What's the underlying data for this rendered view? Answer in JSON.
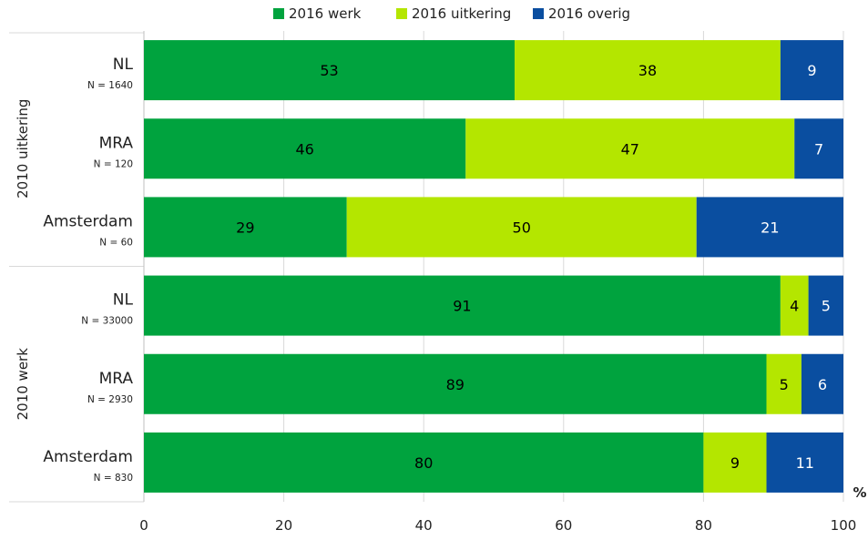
{
  "chart_data": {
    "type": "bar",
    "orientation": "horizontal",
    "stacked": true,
    "legend": {
      "position": "top"
    },
    "series": [
      {
        "name": "2016 werk",
        "color": "#00A33E",
        "values": [
          53,
          46,
          29,
          91,
          89,
          80
        ]
      },
      {
        "name": "2016 uitkering",
        "color": "#B4E600",
        "values": [
          38,
          47,
          50,
          4,
          5,
          9
        ]
      },
      {
        "name": "2016 overig",
        "color": "#0A4EA0",
        "values": [
          9,
          7,
          21,
          5,
          6,
          11
        ]
      }
    ],
    "groups": [
      {
        "label": "2010 uitkering",
        "rows": [
          {
            "name": "NL",
            "n": "N = 1640"
          },
          {
            "name": "MRA",
            "n": "N = 120"
          },
          {
            "name": "Amsterdam",
            "n": "N = 60"
          }
        ]
      },
      {
        "label": "2010 werk",
        "rows": [
          {
            "name": "NL",
            "n": "N = 33000"
          },
          {
            "name": "MRA",
            "n": "N = 2930"
          },
          {
            "name": "Amsterdam",
            "n": "N = 830"
          }
        ]
      }
    ],
    "x_axis": {
      "ticks": [
        0,
        20,
        40,
        60,
        80,
        100
      ],
      "xlim": [
        0,
        100
      ],
      "unit_label": "%"
    },
    "grid": true
  }
}
